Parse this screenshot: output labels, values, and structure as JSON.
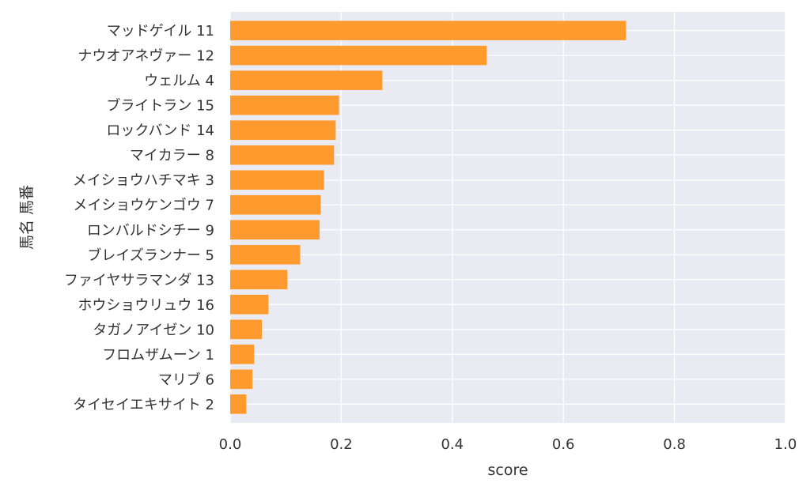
{
  "chart_data": {
    "type": "bar",
    "orientation": "horizontal",
    "categories": [
      "マッドゲイル 11",
      "ナウオアネヴァー 12",
      "ウェルム 4",
      "ブライトラン 15",
      "ロックバンド 14",
      "マイカラー 8",
      "メイショウハチマキ 3",
      "メイショウケンゴウ 7",
      "ロンバルドシチー 9",
      "ブレイズランナー 5",
      "ファイヤサラマンダ 13",
      "ホウショウリュウ 16",
      "タガノアイゼン 10",
      "フロムザムーン 1",
      "マリブ 6",
      "タイセイエキサイト 2"
    ],
    "values": [
      0.713,
      0.462,
      0.274,
      0.196,
      0.19,
      0.187,
      0.169,
      0.163,
      0.161,
      0.126,
      0.103,
      0.069,
      0.057,
      0.043,
      0.04,
      0.029
    ],
    "title": "",
    "xlabel": "score",
    "ylabel": "馬名 馬番",
    "xlim": [
      0,
      1.0
    ],
    "xticks": [
      "0.0",
      "0.2",
      "0.4",
      "0.6",
      "0.8",
      "1.0"
    ],
    "grid": true,
    "colors": {
      "bar": "#ff9a2e",
      "background": "#eaeaf2",
      "grid": "#ffffff"
    }
  }
}
